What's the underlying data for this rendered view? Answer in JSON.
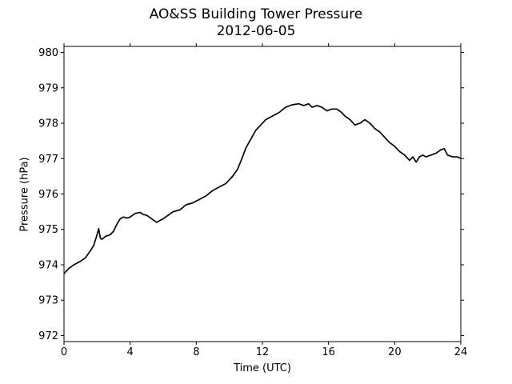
{
  "chart_data": {
    "type": "line",
    "title": "AO&SS Building Tower Pressure",
    "subtitle": "2012-06-05",
    "xlabel": "Time (UTC)",
    "ylabel": "Pressure (hPa)",
    "xlim": [
      0,
      24
    ],
    "ylim": [
      971.83,
      980.17
    ],
    "xticks": [
      0,
      4,
      8,
      12,
      16,
      20,
      24
    ],
    "yticks": [
      972,
      973,
      974,
      975,
      976,
      977,
      978,
      979,
      980
    ],
    "grid": false,
    "line_color": "#000000",
    "series": [
      {
        "x": [
          0,
          0.3,
          0.6,
          1.0,
          1.3,
          1.6,
          1.8,
          2.0,
          2.1,
          2.2,
          2.3,
          2.5,
          2.8,
          3.0,
          3.2,
          3.4,
          3.6,
          3.8,
          4.0,
          4.3,
          4.6,
          4.8,
          5.0,
          5.3,
          5.6,
          5.8,
          6.0,
          6.3,
          6.6,
          7.0,
          7.4,
          7.8,
          8.2,
          8.6,
          9.0,
          9.4,
          9.8,
          10.2,
          10.5,
          10.8,
          11.0,
          11.3,
          11.6,
          11.9,
          12.2,
          12.6,
          13.0,
          13.4,
          13.8,
          14.2,
          14.5,
          14.8,
          15.0,
          15.3,
          15.6,
          15.9,
          16.2,
          16.5,
          16.8,
          17.0,
          17.3,
          17.6,
          17.9,
          18.2,
          18.5,
          18.8,
          19.1,
          19.4,
          19.7,
          20.0,
          20.3,
          20.6,
          20.9,
          21.1,
          21.3,
          21.5,
          21.7,
          21.9,
          22.2,
          22.5,
          22.8,
          23.0,
          23.2,
          23.5,
          23.8,
          24.0
        ],
        "values": [
          973.75,
          973.9,
          974.0,
          974.1,
          974.2,
          974.4,
          974.55,
          974.85,
          975.02,
          974.75,
          974.72,
          974.8,
          974.85,
          974.95,
          975.15,
          975.3,
          975.35,
          975.32,
          975.35,
          975.45,
          975.48,
          975.42,
          975.4,
          975.3,
          975.2,
          975.25,
          975.3,
          975.4,
          975.5,
          975.55,
          975.7,
          975.75,
          975.85,
          975.95,
          976.1,
          976.2,
          976.3,
          976.5,
          976.7,
          977.05,
          977.3,
          977.55,
          977.8,
          977.95,
          978.1,
          978.2,
          978.3,
          978.45,
          978.52,
          978.55,
          978.5,
          978.55,
          978.45,
          978.5,
          978.45,
          978.35,
          978.4,
          978.4,
          978.3,
          978.2,
          978.1,
          977.95,
          978.0,
          978.1,
          978.0,
          977.85,
          977.75,
          977.6,
          977.45,
          977.35,
          977.2,
          977.1,
          976.95,
          977.05,
          976.9,
          977.05,
          977.1,
          977.05,
          977.1,
          977.15,
          977.25,
          977.28,
          977.1,
          977.05,
          977.05,
          977.0
        ]
      }
    ]
  }
}
